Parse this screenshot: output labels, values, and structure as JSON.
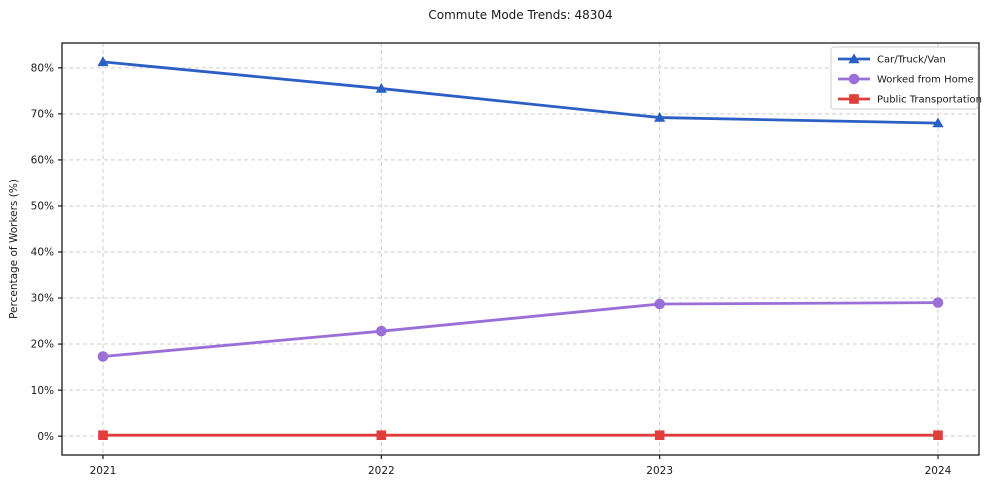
{
  "figure": {
    "background": "#ffffff",
    "border_color": "#1a1a1a",
    "grid_color": "#cdcdcd",
    "text_color": "#1a1a1a",
    "legend_border_color": "#cfcfcf"
  },
  "chart_data": {
    "type": "line",
    "title": "Commute Mode Trends: 48304",
    "xlabel": "",
    "ylabel": "Percentage of Workers (%)",
    "x": [
      2021,
      2022,
      2023,
      2024
    ],
    "x_tick_labels": [
      "2021",
      "2022",
      "2023",
      "2024"
    ],
    "y_ticks": [
      0,
      10,
      20,
      30,
      40,
      50,
      60,
      70,
      80
    ],
    "y_tick_labels": [
      "0%",
      "10%",
      "20%",
      "30%",
      "40%",
      "50%",
      "60%",
      "70%",
      "80%"
    ],
    "ylim": [
      -4.1,
      85.4
    ],
    "grid": "both, dashed",
    "legend_position": "upper right",
    "series": [
      {
        "name": "Car/Truck/Van",
        "values": [
          81.3,
          75.5,
          69.2,
          68.0
        ],
        "color": "#2c5fc4",
        "marker": "triangle"
      },
      {
        "name": "Worked from Home",
        "values": [
          17.3,
          22.8,
          28.7,
          29.0
        ],
        "color": "#9a6fd8",
        "marker": "circle"
      },
      {
        "name": "Public Transportation",
        "values": [
          0.2,
          0.2,
          0.2,
          0.2
        ],
        "color": "#e23d3d",
        "marker": "square"
      }
    ]
  }
}
